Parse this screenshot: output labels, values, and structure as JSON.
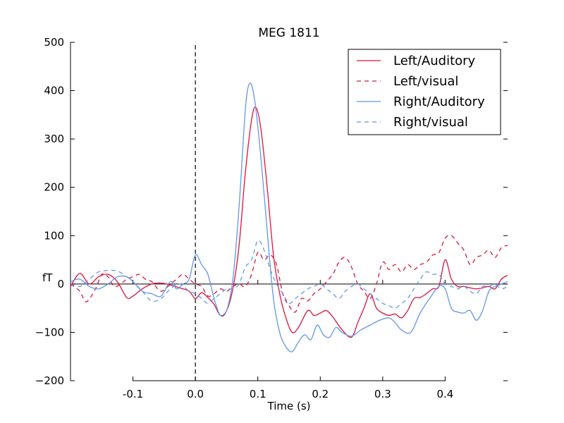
{
  "chart_data": {
    "type": "line",
    "title": "MEG 1811",
    "xlabel": "Time (s)",
    "ylabel": "fT",
    "xlim": [
      -0.2,
      0.5
    ],
    "ylim": [
      -200,
      500
    ],
    "x_ticks": [
      -0.1,
      0.0,
      0.1,
      0.2,
      0.3,
      0.4
    ],
    "x_tick_labels": [
      "-0.1",
      "0.0",
      "0.1",
      "0.2",
      "0.3",
      "0.4"
    ],
    "y_ticks": [
      -200,
      -100,
      0,
      100,
      200,
      300,
      400,
      500
    ],
    "y_tick_labels": [
      "−200",
      "−100",
      "0",
      "100",
      "200",
      "300",
      "400",
      "500"
    ],
    "grid": false,
    "legend_position": "top-right",
    "zero_line": true,
    "stimulus_marker_x": 0.0,
    "colors": {
      "left": "#dc143c",
      "right": "#6495ed"
    },
    "series": [
      {
        "name": "Left/Auditory",
        "color": "#dc143c",
        "style": "solid",
        "x": [
          -0.2,
          -0.185,
          -0.17,
          -0.155,
          -0.14,
          -0.125,
          -0.11,
          -0.1,
          -0.085,
          -0.07,
          -0.055,
          -0.04,
          -0.025,
          -0.01,
          0.0,
          0.01,
          0.02,
          0.03,
          0.04,
          0.05,
          0.06,
          0.07,
          0.08,
          0.09,
          0.097,
          0.105,
          0.115,
          0.125,
          0.135,
          0.145,
          0.155,
          0.165,
          0.18,
          0.19,
          0.2,
          0.21,
          0.22,
          0.235,
          0.25,
          0.26,
          0.27,
          0.28,
          0.29,
          0.3,
          0.31,
          0.32,
          0.33,
          0.34,
          0.35,
          0.36,
          0.37,
          0.38,
          0.39,
          0.4,
          0.41,
          0.42,
          0.43,
          0.44,
          0.45,
          0.46,
          0.47,
          0.48,
          0.49,
          0.5
        ],
        "y": [
          -5,
          22,
          0,
          15,
          20,
          5,
          -28,
          -25,
          -10,
          0,
          2,
          -2,
          -8,
          -15,
          -30,
          -18,
          -28,
          -42,
          -65,
          -55,
          -10,
          80,
          230,
          340,
          365,
          320,
          200,
          60,
          -20,
          -70,
          -100,
          -90,
          -55,
          -65,
          -60,
          -55,
          -68,
          -95,
          -110,
          -80,
          -50,
          -20,
          -50,
          -60,
          -65,
          -62,
          -70,
          -55,
          -30,
          -28,
          -20,
          -10,
          -5,
          50,
          10,
          -5,
          -5,
          -8,
          -10,
          -8,
          -5,
          -10,
          10,
          18
        ]
      },
      {
        "name": "Left/visual",
        "color": "#dc143c",
        "style": "dashed",
        "x": [
          -0.2,
          -0.185,
          -0.175,
          -0.16,
          -0.15,
          -0.14,
          -0.13,
          -0.12,
          -0.11,
          -0.1,
          -0.09,
          -0.08,
          -0.07,
          -0.055,
          -0.04,
          -0.03,
          -0.02,
          -0.01,
          0.0,
          0.01,
          0.02,
          0.03,
          0.04,
          0.05,
          0.06,
          0.07,
          0.08,
          0.09,
          0.1,
          0.11,
          0.12,
          0.13,
          0.14,
          0.15,
          0.16,
          0.17,
          0.18,
          0.19,
          0.2,
          0.21,
          0.22,
          0.23,
          0.24,
          0.25,
          0.26,
          0.27,
          0.28,
          0.29,
          0.3,
          0.31,
          0.32,
          0.33,
          0.34,
          0.35,
          0.36,
          0.37,
          0.38,
          0.39,
          0.4,
          0.41,
          0.42,
          0.43,
          0.44,
          0.45,
          0.46,
          0.47,
          0.48,
          0.49,
          0.5
        ],
        "y": [
          0,
          -15,
          -37,
          -10,
          20,
          15,
          -5,
          0,
          10,
          15,
          20,
          10,
          5,
          -15,
          0,
          10,
          20,
          10,
          0,
          -5,
          -25,
          -20,
          -10,
          -15,
          -5,
          0,
          -5,
          20,
          65,
          50,
          60,
          40,
          -20,
          -45,
          -58,
          -30,
          -35,
          -20,
          -10,
          5,
          20,
          45,
          55,
          35,
          0,
          -15,
          -30,
          0,
          45,
          30,
          40,
          25,
          40,
          30,
          40,
          45,
          60,
          65,
          95,
          100,
          85,
          70,
          40,
          55,
          60,
          70,
          55,
          75,
          80
        ]
      },
      {
        "name": "Right/Auditory",
        "color": "#6495ed",
        "style": "solid",
        "x": [
          -0.2,
          -0.185,
          -0.17,
          -0.155,
          -0.14,
          -0.125,
          -0.11,
          -0.1,
          -0.085,
          -0.07,
          -0.055,
          -0.04,
          -0.03,
          -0.02,
          -0.01,
          0.0,
          0.01,
          0.02,
          0.03,
          0.04,
          0.05,
          0.06,
          0.07,
          0.08,
          0.087,
          0.095,
          0.105,
          0.115,
          0.125,
          0.135,
          0.145,
          0.155,
          0.165,
          0.175,
          0.185,
          0.195,
          0.205,
          0.215,
          0.225,
          0.235,
          0.25,
          0.265,
          0.28,
          0.295,
          0.31,
          0.32,
          0.33,
          0.345,
          0.36,
          0.375,
          0.39,
          0.4,
          0.41,
          0.42,
          0.43,
          0.44,
          0.45,
          0.46,
          0.47,
          0.48,
          0.49,
          0.5
        ],
        "y": [
          5,
          10,
          -5,
          -10,
          0,
          15,
          15,
          5,
          -15,
          -20,
          -25,
          5,
          -10,
          0,
          10,
          60,
          40,
          20,
          -30,
          -65,
          -55,
          10,
          160,
          360,
          415,
          380,
          260,
          110,
          -30,
          -100,
          -130,
          -140,
          -120,
          -105,
          -115,
          -85,
          -105,
          -110,
          -90,
          -100,
          -108,
          -95,
          -85,
          -75,
          -70,
          -80,
          -95,
          -100,
          -60,
          -30,
          -5,
          -10,
          -50,
          -58,
          -60,
          -55,
          -75,
          -55,
          -15,
          -5,
          0,
          5
        ]
      },
      {
        "name": "Right/visual",
        "color": "#6495ed",
        "style": "dashed",
        "x": [
          -0.2,
          -0.185,
          -0.17,
          -0.155,
          -0.14,
          -0.125,
          -0.11,
          -0.1,
          -0.085,
          -0.07,
          -0.055,
          -0.04,
          -0.025,
          -0.01,
          0.0,
          0.01,
          0.02,
          0.03,
          0.04,
          0.05,
          0.06,
          0.07,
          0.08,
          0.09,
          0.1,
          0.11,
          0.12,
          0.13,
          0.14,
          0.15,
          0.16,
          0.17,
          0.18,
          0.19,
          0.2,
          0.21,
          0.22,
          0.23,
          0.24,
          0.25,
          0.26,
          0.27,
          0.28,
          0.29,
          0.3,
          0.31,
          0.32,
          0.33,
          0.34,
          0.35,
          0.36,
          0.37,
          0.38,
          0.39,
          0.4,
          0.41,
          0.42,
          0.43,
          0.44,
          0.45,
          0.46,
          0.47,
          0.48,
          0.49,
          0.5
        ],
        "y": [
          0,
          -5,
          10,
          25,
          28,
          27,
          15,
          5,
          -15,
          -35,
          -30,
          -10,
          0,
          -15,
          -20,
          -30,
          -40,
          -30,
          -20,
          -10,
          -10,
          0,
          35,
          50,
          90,
          70,
          30,
          0,
          -20,
          -40,
          -30,
          -20,
          -10,
          -5,
          0,
          -10,
          -20,
          -30,
          -15,
          -5,
          0,
          -10,
          -20,
          -30,
          -40,
          -45,
          -50,
          -40,
          -30,
          -10,
          10,
          25,
          20,
          20,
          0,
          -5,
          -10,
          -5,
          -15,
          -20,
          -5,
          -5,
          0,
          -10,
          -5
        ]
      }
    ]
  }
}
